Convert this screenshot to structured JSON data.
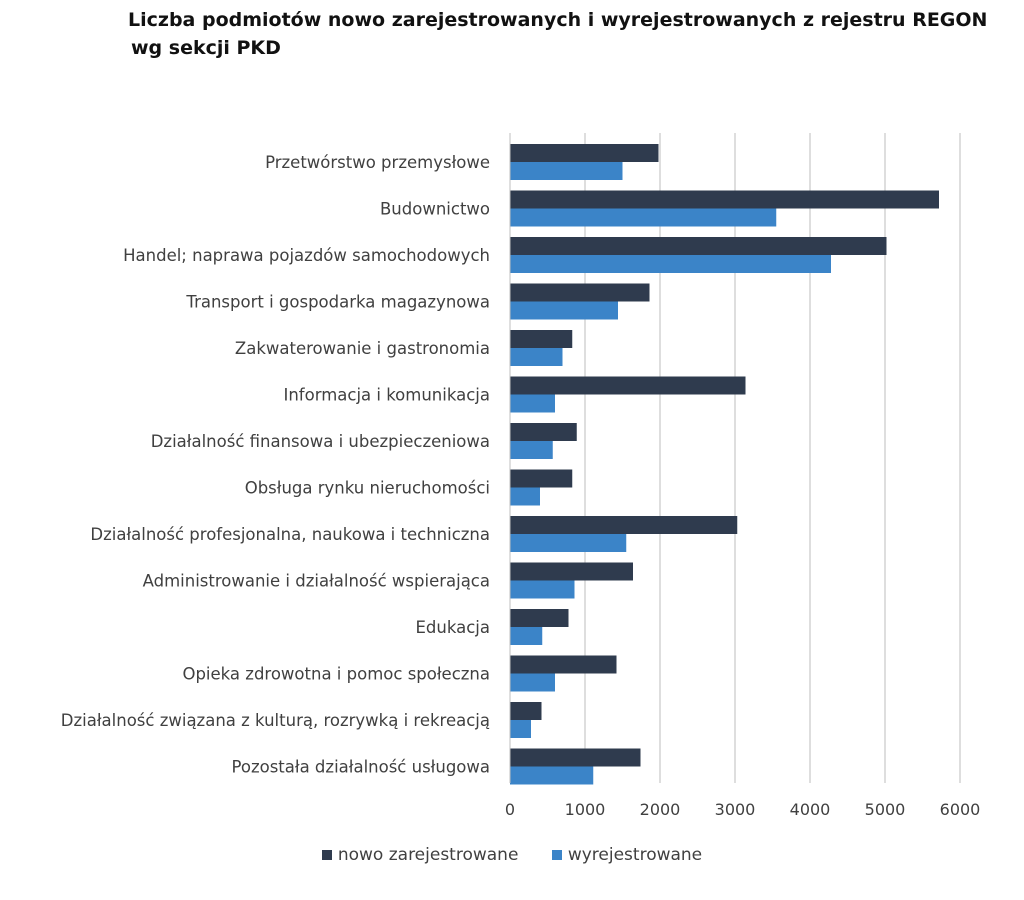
{
  "chart_data": {
    "type": "bar",
    "orientation": "horizontal",
    "title_line1": "Liczba podmiotów nowo zarejestrowanych i wyrejestrowanych z rejestru REGON",
    "title_line2": "wg sekcji PKD",
    "xlabel": "",
    "ylabel": "",
    "xlim": [
      0,
      6000
    ],
    "xticks": [
      "0",
      "1000",
      "2000",
      "3000",
      "4000",
      "5000",
      "6000"
    ],
    "grid": "vertical",
    "legend_position": "bottom",
    "categories": [
      "Przetwórstwo przemysłowe",
      "Budownictwo",
      "Handel; naprawa pojazdów samochodowych",
      "Transport i gospodarka magazynowa",
      "Zakwaterowanie i gastronomia",
      "Informacja i komunikacja",
      "Działalność finansowa i ubezpieczeniowa",
      "Obsługa rynku nieruchomości",
      "Działalność profesjonalna, naukowa i techniczna",
      "Administrowanie i działalność wspierająca",
      "Edukacja",
      "Opieka zdrowotna i pomoc społeczna",
      "Działalność związana z kulturą, rozrywką i rekreacją",
      "Pozostała działalność usługowa"
    ],
    "series": [
      {
        "name": "nowo zarejestrowane",
        "color": "#2f3b4e",
        "values": [
          1980,
          5720,
          5020,
          1860,
          830,
          3140,
          890,
          830,
          3030,
          1640,
          780,
          1420,
          420,
          1740
        ]
      },
      {
        "name": "wyrejestrowane",
        "color": "#3b84c8",
        "values": [
          1500,
          3550,
          4280,
          1440,
          700,
          600,
          570,
          400,
          1550,
          860,
          430,
          600,
          280,
          1110
        ]
      }
    ]
  }
}
